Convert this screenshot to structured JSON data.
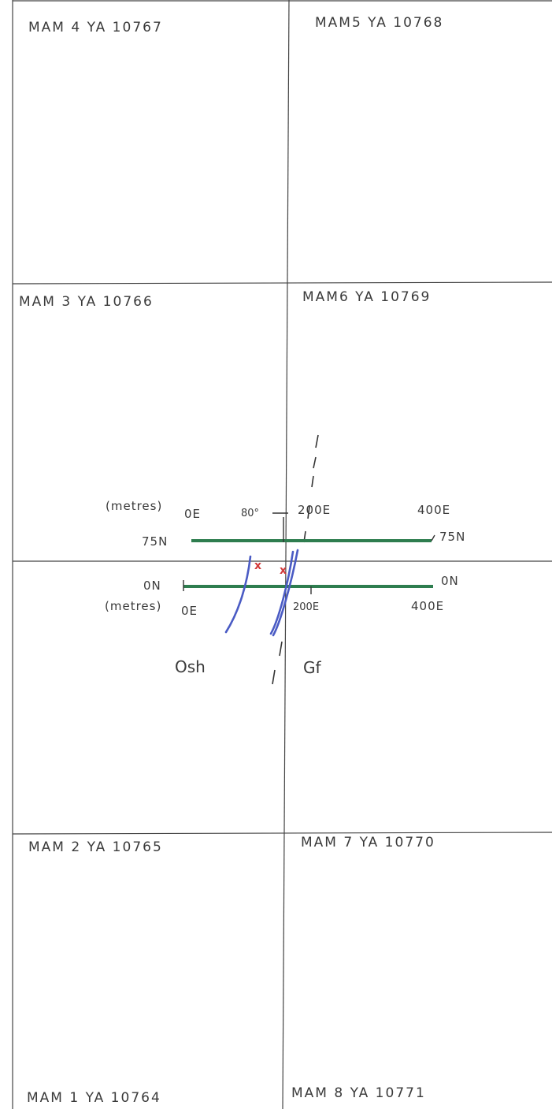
{
  "claims": {
    "mam4": "MAM 4  YA 10767",
    "mam5": "MAM5  YA 10768",
    "mam3": "MAM 3  YA 10766",
    "mam6": "MAM6  YA 10769",
    "mam2": "MAM 2  YA 10765",
    "mam7": "MAM 7  YA 10770",
    "mam1": "MAM 1  YA 10764",
    "mam8": "MAM 8  YA 10771"
  },
  "grid_lines": {
    "line_75n": {
      "label_left": "75N",
      "label_right": "75N",
      "unit": "(metres)",
      "ticks": [
        "0E",
        "200E",
        "400E"
      ],
      "color": "#2e7d4f"
    },
    "line_0n": {
      "label_left": "0N",
      "label_right": "0N",
      "unit": "(metres)",
      "ticks": [
        "0E",
        "200E",
        "400E"
      ],
      "color": "#2e7d4f"
    }
  },
  "dip": "80°",
  "geology": {
    "left_unit": "Osh",
    "right_unit": "Gf",
    "contact_color": "#4a5bc4"
  },
  "samples": {
    "marker": "x",
    "color": "#d23a3a"
  },
  "colors": {
    "linework": "#444444",
    "paper": "#ffffff"
  }
}
